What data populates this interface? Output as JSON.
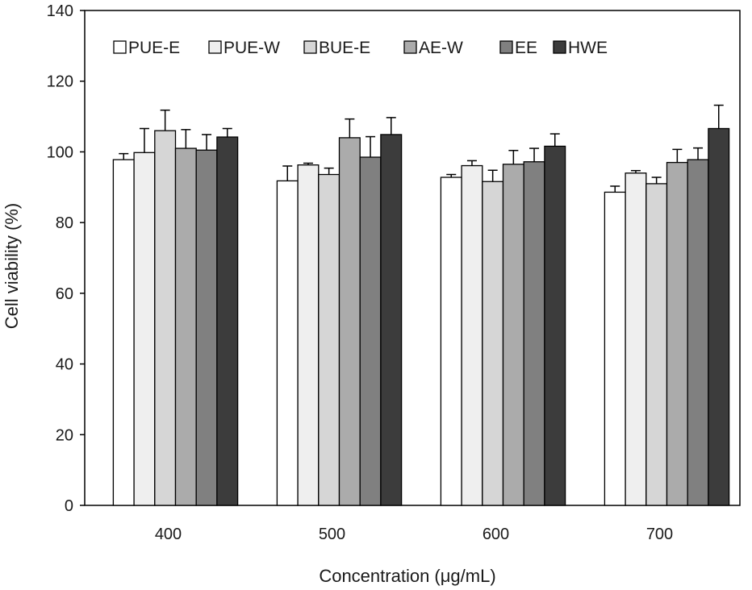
{
  "chart_data": {
    "type": "bar",
    "xlabel": "Concentration (μg/mL)",
    "ylabel": "Cell viability (%)",
    "ylim": [
      0,
      140
    ],
    "yticks": [
      0,
      20,
      40,
      60,
      80,
      100,
      120,
      140
    ],
    "categories": [
      "400",
      "500",
      "600",
      "700"
    ],
    "grid": false,
    "legend_position": "top-left, inside plot, horizontal",
    "series": [
      {
        "name": "PUE-E",
        "color": "#ffffff",
        "values": [
          97.8,
          91.8,
          92.8,
          88.6
        ],
        "errors": [
          1.7,
          4.2,
          0.8,
          1.7
        ]
      },
      {
        "name": "PUE-W",
        "color": "#efefef",
        "values": [
          99.8,
          96.3,
          96.1,
          94.0
        ],
        "errors": [
          6.8,
          0.5,
          1.4,
          0.7
        ]
      },
      {
        "name": "BUE-E",
        "color": "#d6d6d6",
        "values": [
          106.0,
          93.6,
          91.6,
          91.0
        ],
        "errors": [
          5.8,
          1.8,
          3.2,
          1.8
        ]
      },
      {
        "name": "AE-W",
        "color": "#ababab",
        "values": [
          101.0,
          104.0,
          96.5,
          97.0
        ],
        "errors": [
          5.3,
          5.3,
          3.9,
          3.7
        ]
      },
      {
        "name": "EE",
        "color": "#808080",
        "values": [
          100.5,
          98.5,
          97.2,
          97.8
        ],
        "errors": [
          4.4,
          5.8,
          3.8,
          3.3
        ]
      },
      {
        "name": "HWE",
        "color": "#3c3c3c",
        "values": [
          104.2,
          104.9,
          101.6,
          106.6
        ],
        "errors": [
          2.4,
          4.8,
          3.5,
          6.6
        ]
      }
    ]
  }
}
